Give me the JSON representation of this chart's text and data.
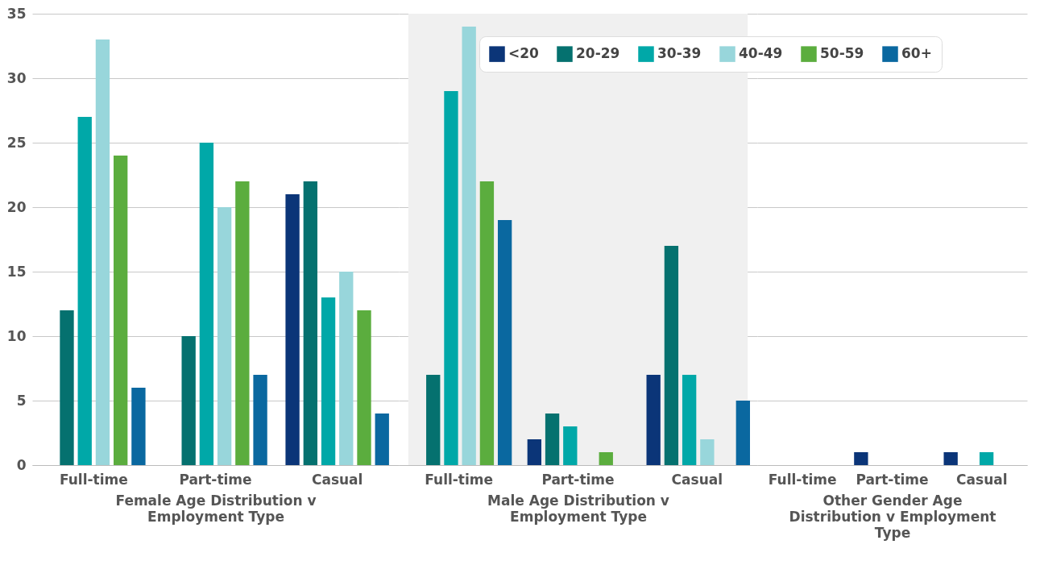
{
  "chart_data": [
    {
      "type": "bar",
      "categories": [
        "Full-time",
        "Part-time",
        "Casual"
      ],
      "xlabel": "Female Age Distribution v Employment Type",
      "ylim": [
        0,
        35
      ],
      "yticks": [
        0,
        5,
        10,
        15,
        20,
        25,
        30,
        35
      ],
      "grid": "y",
      "legend": "top right",
      "series": [
        {
          "name": "<20",
          "color": "#0b3578",
          "values": [
            null,
            null,
            21
          ]
        },
        {
          "name": "20-29",
          "color": "#05716f",
          "values": [
            12,
            10,
            22
          ]
        },
        {
          "name": "30-39",
          "color": "#00a8a8",
          "values": [
            27,
            25,
            13
          ]
        },
        {
          "name": "40-49",
          "color": "#98d6db",
          "values": [
            33,
            20,
            15
          ]
        },
        {
          "name": "50-59",
          "color": "#5bad3e",
          "values": [
            24,
            22,
            12
          ]
        },
        {
          "name": "60+",
          "color": "#0a68a0",
          "values": [
            6,
            7,
            4
          ]
        }
      ]
    },
    {
      "type": "bar",
      "categories": [
        "Full-time",
        "Part-time",
        "Casual"
      ],
      "xlabel": "Male Age Distribution v Employment Type",
      "ylim": [
        0,
        35
      ],
      "yticks": [
        0,
        5,
        10,
        15,
        20,
        25,
        30,
        35
      ],
      "grid": "y",
      "tick_labels": "x",
      "legend": "top right",
      "bands": [
        {
          "axis": "x",
          "from": "Full-time",
          "to": "Casual",
          "color": "#f0f0f0"
        }
      ],
      "series": [
        {
          "name": "<20",
          "color": "#0b3578",
          "values": [
            null,
            2,
            7
          ]
        },
        {
          "name": "20-29",
          "color": "#05716f",
          "values": [
            7,
            4,
            17
          ]
        },
        {
          "name": "30-39",
          "color": "#00a8a8",
          "values": [
            29,
            3,
            7
          ]
        },
        {
          "name": "40-49",
          "color": "#98d6db",
          "values": [
            34,
            null,
            2
          ]
        },
        {
          "name": "50-59",
          "color": "#5bad3e",
          "values": [
            22,
            1,
            null
          ]
        },
        {
          "name": "60+",
          "color": "#0a68a0",
          "values": [
            19,
            null,
            5
          ]
        }
      ]
    },
    {
      "type": "bar",
      "categories": [
        "Full-time",
        "Part-time",
        "Casual"
      ],
      "xlabel": "Other Gender Age Distribution v Employment Type",
      "ylim": [
        0,
        35
      ],
      "yticks": [
        0,
        5,
        10,
        15,
        20,
        25,
        30,
        35
      ],
      "grid": "y",
      "tick_labels": "x",
      "legend": "top right",
      "series": [
        {
          "name": "<20",
          "color": "#0b3578",
          "values": [
            null,
            1,
            1
          ]
        },
        {
          "name": "20-29",
          "color": "#05716f",
          "values": [
            null,
            null,
            null
          ]
        },
        {
          "name": "30-39",
          "color": "#00a8a8",
          "values": [
            null,
            null,
            1
          ]
        },
        {
          "name": "40-49",
          "color": "#98d6db",
          "values": [
            null,
            null,
            null
          ]
        },
        {
          "name": "50-59",
          "color": "#5bad3e",
          "values": [
            null,
            null,
            null
          ]
        },
        {
          "name": "60+",
          "color": "#0a68a0",
          "values": [
            null,
            null,
            null
          ]
        }
      ]
    }
  ]
}
